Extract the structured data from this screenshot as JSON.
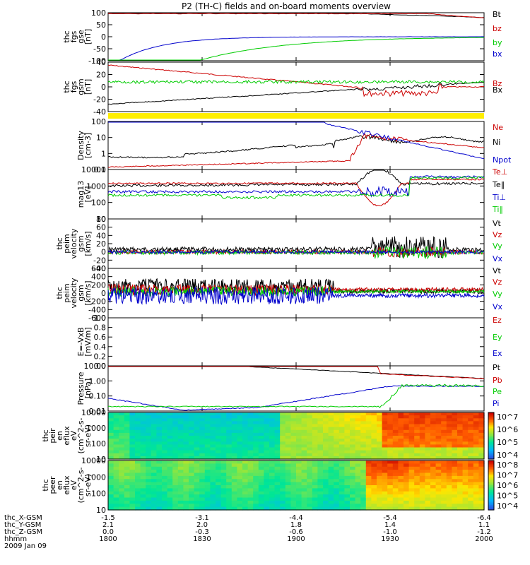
{
  "title": "P2 (TH-C) fields and on-board moments overview",
  "colors": {
    "black": "#000000",
    "red": "#cc0000",
    "green": "#00cc00",
    "blue": "#0000cc",
    "yellow": "#ffee00"
  },
  "chart_data": [
    {
      "type": "line",
      "id": "fgs_gse",
      "ylabel": [
        "thc",
        "fgs",
        "gse",
        "[nT]"
      ],
      "yticks": [
        "100",
        "50",
        "0",
        "-50",
        "-100"
      ],
      "ylim": [
        -100,
        100
      ],
      "legend": [
        {
          "label": "Bt",
          "color": "black"
        },
        {
          "label": "bz",
          "color": "red"
        },
        {
          "label": "by",
          "color": "green"
        },
        {
          "label": "bx",
          "color": "blue"
        }
      ]
    },
    {
      "type": "line",
      "id": "fgs_gsm",
      "ylabel": [
        "thc",
        "fgs",
        "gsm",
        "[nT]"
      ],
      "yticks": [
        "40",
        "20",
        "0",
        "-20",
        "-40"
      ],
      "ylim": [
        -40,
        40
      ],
      "legend": [
        {
          "label": "Bz",
          "color": "red"
        },
        {
          "label": "Bx",
          "color": "black"
        }
      ]
    },
    {
      "type": "line",
      "id": "density",
      "ylabel": [
        "Density",
        "[cm-3]"
      ],
      "yticks": [
        "100",
        "10",
        "1",
        "0.1"
      ],
      "scale": "log",
      "legend": [
        {
          "label": "Ne",
          "color": "red"
        },
        {
          "label": "Ni",
          "color": "black"
        },
        {
          "label": "Npot",
          "color": "blue"
        }
      ]
    },
    {
      "type": "line",
      "id": "temperature",
      "ylabel": [
        "mag13",
        "[eV]"
      ],
      "yticks": [
        "10000",
        "1000",
        "100",
        "10"
      ],
      "scale": "log",
      "legend": [
        {
          "label": "Te⊥",
          "color": "red"
        },
        {
          "label": "Te‖",
          "color": "black"
        },
        {
          "label": "Ti⊥",
          "color": "blue"
        },
        {
          "label": "Ti‖",
          "color": "green"
        }
      ]
    },
    {
      "type": "line",
      "id": "velocity_e",
      "ylabel": [
        "thc",
        "peim",
        "velocity",
        "gsm",
        "[km/s]"
      ],
      "yticks": [
        "80",
        "60",
        "40",
        "20",
        "0",
        "-20",
        "-40"
      ],
      "ylim": [
        -40,
        80
      ],
      "legend": [
        {
          "label": "Vt",
          "color": "black"
        },
        {
          "label": "Vz",
          "color": "red"
        },
        {
          "label": "Vy",
          "color": "green"
        },
        {
          "label": "Vx",
          "color": "blue"
        }
      ]
    },
    {
      "type": "line",
      "id": "velocity_i",
      "ylabel": [
        "thc",
        "peim",
        "velocity",
        "gsm",
        "[km/s]"
      ],
      "yticks": [
        "600",
        "400",
        "200",
        "0",
        "-200",
        "-400",
        "-600"
      ],
      "ylim": [
        -600,
        600
      ],
      "legend": [
        {
          "label": "Vt",
          "color": "black"
        },
        {
          "label": "Vz",
          "color": "red"
        },
        {
          "label": "Vy",
          "color": "green"
        },
        {
          "label": "Vx",
          "color": "blue"
        }
      ]
    },
    {
      "type": "line",
      "id": "efield",
      "ylabel": [
        "E=-VxB",
        "[mV/m]"
      ],
      "yticks": [
        "1.0",
        "0.8",
        "0.6",
        "0.4",
        "0.2",
        "0.0"
      ],
      "ylim": [
        0,
        1
      ],
      "legend": [
        {
          "label": "Ez",
          "color": "red"
        },
        {
          "label": "Ey",
          "color": "green"
        },
        {
          "label": "Ex",
          "color": "blue"
        }
      ]
    },
    {
      "type": "line",
      "id": "pressure",
      "ylabel": [
        "Pressure",
        "[nPa]"
      ],
      "yticks": [
        "10.00",
        "1.00",
        "0.10",
        "0.01"
      ],
      "scale": "log",
      "legend": [
        {
          "label": "Pt",
          "color": "black"
        },
        {
          "label": "Pb",
          "color": "red"
        },
        {
          "label": "Pe",
          "color": "green"
        },
        {
          "label": "Pi",
          "color": "blue"
        }
      ]
    },
    {
      "type": "heatmap",
      "id": "ion_spec",
      "ylabel": [
        "thc",
        "peir",
        "en",
        "eflux",
        "eV",
        "(cm^2-s-",
        "sr-eV)"
      ],
      "yticks": [
        "10000",
        "1000",
        "100",
        "10"
      ],
      "colorbar": [
        "10^7",
        "10^6",
        "10^5",
        "10^4"
      ]
    },
    {
      "type": "heatmap",
      "id": "elec_spec",
      "ylabel": [
        "thc",
        "peer",
        "en",
        "eflux",
        "eV",
        "(cm^2-s-",
        "sr-eV)"
      ],
      "yticks": [
        "10000",
        "1000",
        "100",
        "10"
      ],
      "colorbar": [
        "10^8",
        "10^7",
        "10^6",
        "10^5",
        "10^4"
      ]
    }
  ],
  "x_axis": {
    "rows": [
      {
        "label": "thc_X-GSM",
        "values": [
          "-1.5",
          "-3.1",
          "-4.4",
          "-5.4",
          "-6.4"
        ]
      },
      {
        "label": "thc_Y-GSM",
        "values": [
          "2.1",
          "2.0",
          "1.8",
          "1.4",
          "1.1"
        ]
      },
      {
        "label": "thc_Z-GSM",
        "values": [
          "0.0",
          "-0.3",
          "-0.6",
          "-1.0",
          "-1.2"
        ]
      },
      {
        "label": "hhmm",
        "values": [
          "1800",
          "1830",
          "1900",
          "1930",
          "2000"
        ]
      }
    ],
    "date": "2009 Jan 09"
  }
}
